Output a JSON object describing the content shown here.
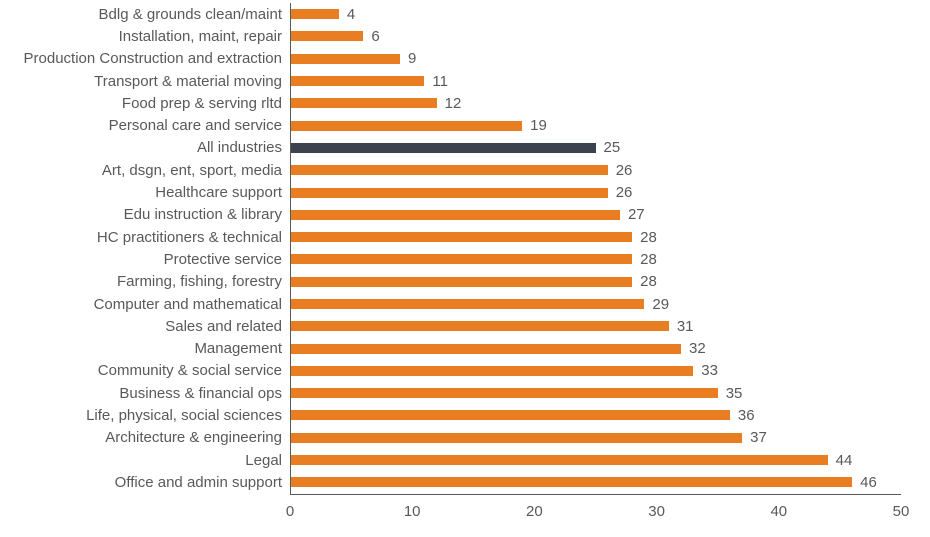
{
  "chart_data": {
    "type": "bar",
    "orientation": "horizontal",
    "title": "",
    "xlabel": "",
    "ylabel": "",
    "xlim": [
      0,
      50
    ],
    "x_ticks": [
      0,
      10,
      20,
      30,
      40,
      50
    ],
    "grid": false,
    "legend": "none",
    "data_labels": true,
    "bar_color": "#E87D22",
    "highlight_color": "#3D434E",
    "highlight_category": "All industries",
    "axis_line_color": "#595959",
    "text_color": "#595959",
    "categories": [
      "Bdlg & grounds clean/maint",
      "Installation, maint, repair",
      "Production Construction and extraction",
      "Transport & material moving",
      "Food prep & serving rltd",
      "Personal care and service",
      "All industries",
      "Art, dsgn, ent, sport, media",
      "Healthcare support",
      "Edu instruction & library",
      "HC practitioners & technical",
      "Protective service",
      "Farming, fishing, forestry",
      "Computer and mathematical",
      "Sales and related",
      "Management",
      "Community & social service",
      "Business & financial ops",
      "Life, physical, social sciences",
      "Architecture & engineering",
      "Legal",
      "Office and admin support"
    ],
    "values": [
      4,
      6,
      9,
      11,
      12,
      19,
      25,
      26,
      26,
      27,
      28,
      28,
      28,
      29,
      31,
      32,
      33,
      35,
      36,
      37,
      44,
      46
    ]
  }
}
